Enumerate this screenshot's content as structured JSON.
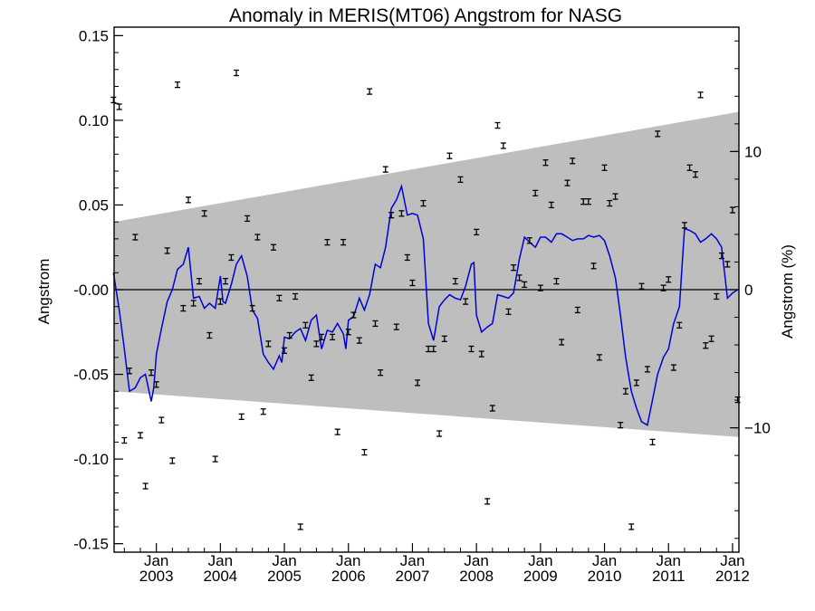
{
  "chart_data": {
    "type": "scatter",
    "title": "Anomaly in MERIS(MT06) Angstrom for NASG",
    "ylabel": "Angstrom",
    "y2label": "Angstrom (%)",
    "xlim": [
      2002.34,
      2012.1
    ],
    "ylim": [
      -0.155,
      0.155
    ],
    "y2lim": [
      -19.0,
      19.0
    ],
    "x_ticks": [
      {
        "value": 2003.0,
        "line1": "Jan",
        "line2": "2003"
      },
      {
        "value": 2004.0,
        "line1": "Jan",
        "line2": "2004"
      },
      {
        "value": 2005.0,
        "line1": "Jan",
        "line2": "2005"
      },
      {
        "value": 2006.0,
        "line1": "Jan",
        "line2": "2006"
      },
      {
        "value": 2007.0,
        "line1": "Jan",
        "line2": "2007"
      },
      {
        "value": 2008.0,
        "line1": "Jan",
        "line2": "2008"
      },
      {
        "value": 2009.0,
        "line1": "Jan",
        "line2": "2009"
      },
      {
        "value": 2010.0,
        "line1": "Jan",
        "line2": "2010"
      },
      {
        "value": 2011.0,
        "line1": "Jan",
        "line2": "2011"
      },
      {
        "value": 2012.0,
        "line1": "Jan",
        "line2": "2012"
      }
    ],
    "y_ticks": [
      {
        "value": 0.15,
        "label": "0.15"
      },
      {
        "value": 0.1,
        "label": "0.10"
      },
      {
        "value": 0.05,
        "label": "0.05"
      },
      {
        "value": 0.0,
        "label": "-0.00"
      },
      {
        "value": -0.05,
        "label": "-0.05"
      },
      {
        "value": -0.1,
        "label": "-0.10"
      },
      {
        "value": -0.15,
        "label": "-0.15"
      }
    ],
    "y2_ticks": [
      {
        "value": 10,
        "label": "10"
      },
      {
        "value": 0,
        "label": "0"
      },
      {
        "value": -10,
        "label": "−10"
      }
    ],
    "trend_band": {
      "x": [
        2002.34,
        2012.1
      ],
      "upper": [
        0.04,
        0.105
      ],
      "lower": [
        -0.06,
        -0.087
      ],
      "color": "#bebebe"
    },
    "zero_line": 0.0,
    "monthly_points": {
      "x": [
        2002.33,
        2002.42,
        2002.5,
        2002.58,
        2002.67,
        2002.75,
        2002.83,
        2002.92,
        2003.0,
        2003.08,
        2003.17,
        2003.25,
        2003.33,
        2003.42,
        2003.5,
        2003.58,
        2003.67,
        2003.75,
        2003.83,
        2003.92,
        2004.0,
        2004.08,
        2004.17,
        2004.25,
        2004.33,
        2004.42,
        2004.5,
        2004.58,
        2004.67,
        2004.75,
        2004.83,
        2004.92,
        2005.0,
        2005.08,
        2005.17,
        2005.25,
        2005.33,
        2005.42,
        2005.5,
        2005.58,
        2005.67,
        2005.75,
        2005.83,
        2005.92,
        2006.0,
        2006.08,
        2006.17,
        2006.25,
        2006.33,
        2006.42,
        2006.5,
        2006.58,
        2006.67,
        2006.75,
        2006.83,
        2006.92,
        2007.0,
        2007.08,
        2007.17,
        2007.25,
        2007.33,
        2007.42,
        2007.5,
        2007.58,
        2007.67,
        2007.75,
        2007.83,
        2007.92,
        2008.0,
        2008.08,
        2008.17,
        2008.25,
        2008.33,
        2008.42,
        2008.5,
        2008.58,
        2008.67,
        2008.75,
        2008.83,
        2008.92,
        2009.0,
        2009.08,
        2009.17,
        2009.25,
        2009.33,
        2009.42,
        2009.5,
        2009.58,
        2009.67,
        2009.75,
        2009.83,
        2009.92,
        2010.0,
        2010.08,
        2010.17,
        2010.25,
        2010.33,
        2010.42,
        2010.5,
        2010.58,
        2010.67,
        2010.75,
        2010.83,
        2010.92,
        2011.0,
        2011.08,
        2011.17,
        2011.25,
        2011.33,
        2011.42,
        2011.5,
        2011.58,
        2011.67,
        2011.75,
        2011.83,
        2011.92,
        2012.0,
        2012.08
      ],
      "y": [
        0.112,
        0.108,
        -0.089,
        -0.048,
        0.031,
        -0.086,
        -0.116,
        -0.049,
        -0.056,
        -0.077,
        0.023,
        -0.101,
        0.121,
        -0.011,
        0.053,
        -0.008,
        0.005,
        0.045,
        -0.027,
        -0.1,
        -0.007,
        0.005,
        0.019,
        0.128,
        -0.075,
        0.042,
        -0.011,
        0.031,
        -0.072,
        -0.032,
        0.025,
        -0.005,
        -0.036,
        -0.027,
        -0.004,
        -0.14,
        -0.021,
        -0.052,
        -0.032,
        -0.028,
        0.028,
        -0.028,
        -0.084,
        0.028,
        -0.025,
        -0.015,
        -0.03,
        -0.096,
        0.117,
        -0.02,
        -0.049,
        0.071,
        0.044,
        -0.022,
        0.045,
        0.019,
        0.004,
        -0.055,
        0.051,
        -0.035,
        -0.035,
        -0.085,
        -0.029,
        0.079,
        0.005,
        0.065,
        -0.007,
        -0.035,
        0.034,
        -0.038,
        -0.125,
        -0.07,
        0.097,
        0.085,
        -0.013,
        0.013,
        0.007,
        0.003,
        0.029,
        0.057,
        0.001,
        0.075,
        0.05,
        0.005,
        -0.031,
        0.063,
        0.076,
        -0.012,
        0.052,
        0.052,
        0.014,
        -0.04,
        0.072,
        0.051,
        0.055,
        -0.08,
        -0.06,
        -0.14,
        -0.055,
        0.002,
        -0.047,
        -0.09,
        0.092,
        0.001,
        0.006,
        -0.046,
        -0.021,
        0.038,
        0.072,
        0.068,
        0.115,
        -0.033,
        -0.029,
        -0.004,
        0.02,
        0.015,
        0.047,
        -0.065
      ]
    },
    "series": [
      {
        "color": "#0000dd",
        "x": [
          2002.33,
          2002.42,
          2002.5,
          2002.58,
          2002.67,
          2002.75,
          2002.83,
          2002.92,
          2002.96,
          2003.0,
          2003.08,
          2003.17,
          2003.25,
          2003.33,
          2003.42,
          2003.5,
          2003.58,
          2003.67,
          2003.75,
          2003.83,
          2003.92,
          2004.0,
          2004.04,
          2004.08,
          2004.17,
          2004.25,
          2004.33,
          2004.42,
          2004.5,
          2004.58,
          2004.67,
          2004.75,
          2004.83,
          2004.92,
          2004.96,
          2005.0,
          2005.08,
          2005.17,
          2005.25,
          2005.33,
          2005.42,
          2005.5,
          2005.58,
          2005.67,
          2005.75,
          2005.83,
          2005.92,
          2005.96,
          2006.0,
          2006.08,
          2006.17,
          2006.25,
          2006.33,
          2006.42,
          2006.5,
          2006.58,
          2006.67,
          2006.75,
          2006.83,
          2006.92,
          2007.0,
          2007.08,
          2007.17,
          2007.25,
          2007.33,
          2007.42,
          2007.5,
          2007.58,
          2007.67,
          2007.75,
          2007.83,
          2007.92,
          2007.96,
          2008.0,
          2008.08,
          2008.17,
          2008.25,
          2008.33,
          2008.42,
          2008.5,
          2008.58,
          2008.67,
          2008.75,
          2008.83,
          2008.92,
          2009.0,
          2009.08,
          2009.17,
          2009.25,
          2009.33,
          2009.42,
          2009.5,
          2009.58,
          2009.67,
          2009.75,
          2009.83,
          2009.92,
          2010.0,
          2010.08,
          2010.17,
          2010.25,
          2010.33,
          2010.42,
          2010.5,
          2010.58,
          2010.67,
          2010.75,
          2010.83,
          2010.92,
          2011.0,
          2011.08,
          2011.17,
          2011.25,
          2011.33,
          2011.42,
          2011.5,
          2011.58,
          2011.67,
          2011.75,
          2011.83,
          2011.92,
          2012.0,
          2012.08
        ],
        "values": [
          0.01,
          -0.012,
          -0.035,
          -0.06,
          -0.058,
          -0.052,
          -0.05,
          -0.066,
          -0.058,
          -0.038,
          -0.023,
          -0.007,
          0.0,
          0.012,
          0.015,
          0.025,
          -0.005,
          -0.004,
          -0.011,
          -0.008,
          -0.011,
          0.008,
          -0.007,
          -0.008,
          0.003,
          0.015,
          0.02,
          0.008,
          -0.012,
          -0.017,
          -0.038,
          -0.043,
          -0.047,
          -0.039,
          -0.043,
          -0.028,
          -0.029,
          -0.025,
          -0.023,
          -0.03,
          -0.018,
          -0.015,
          -0.035,
          -0.024,
          -0.025,
          -0.02,
          -0.026,
          -0.035,
          -0.018,
          -0.016,
          -0.005,
          -0.012,
          -0.003,
          0.015,
          0.013,
          0.025,
          0.048,
          0.053,
          0.061,
          0.044,
          0.045,
          0.044,
          0.03,
          -0.02,
          -0.03,
          -0.01,
          -0.006,
          -0.003,
          -0.005,
          -0.006,
          0.002,
          0.015,
          0.016,
          -0.015,
          -0.025,
          -0.022,
          -0.02,
          -0.003,
          -0.004,
          -0.005,
          -0.002,
          0.018,
          0.031,
          0.028,
          0.025,
          0.031,
          0.031,
          0.028,
          0.033,
          0.033,
          0.031,
          0.029,
          0.03,
          0.03,
          0.032,
          0.031,
          0.032,
          0.029,
          0.02,
          0.007,
          -0.015,
          -0.04,
          -0.06,
          -0.07,
          -0.078,
          -0.08,
          -0.065,
          -0.05,
          -0.04,
          -0.035,
          -0.02,
          -0.01,
          0.036,
          0.035,
          0.033,
          0.028,
          0.03,
          0.033,
          0.03,
          0.025,
          -0.005,
          -0.002,
          0.0
        ]
      }
    ]
  }
}
